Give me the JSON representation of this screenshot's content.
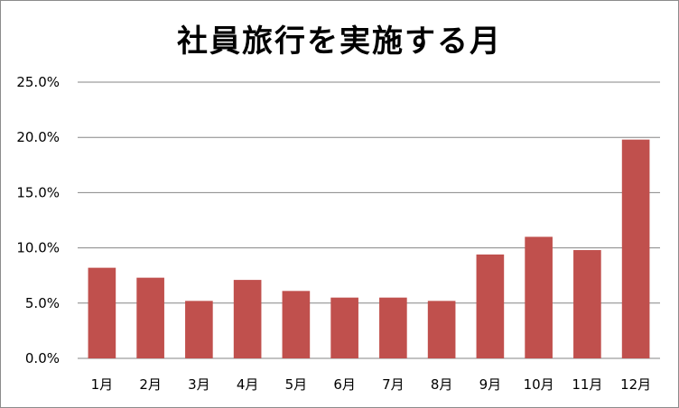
{
  "chart_data": {
    "type": "bar",
    "title": "社員旅行を実施する月",
    "xlabel": "",
    "ylabel": "",
    "categories": [
      "1月",
      "2月",
      "3月",
      "4月",
      "5月",
      "6月",
      "7月",
      "8月",
      "9月",
      "10月",
      "11月",
      "12月"
    ],
    "values": [
      8.2,
      7.3,
      5.2,
      7.1,
      6.1,
      5.5,
      5.5,
      5.2,
      9.4,
      11.0,
      9.8,
      19.8
    ],
    "value_format": "percent",
    "ylim": [
      0,
      25
    ],
    "yticks": [
      "0.0%",
      "5.0%",
      "10.0%",
      "15.0%",
      "20.0%",
      "25.0%"
    ],
    "grid": true,
    "legend": "none",
    "bar_color": "#c0504d",
    "grid_color": "#868686"
  }
}
